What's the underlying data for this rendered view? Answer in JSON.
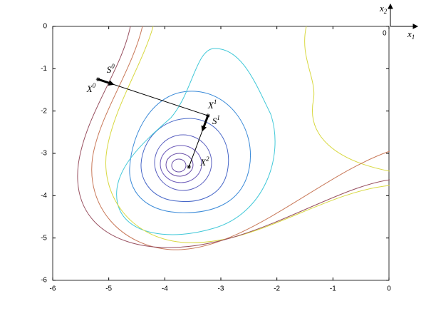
{
  "chart_data": {
    "type": "contour",
    "xlim": [
      -6,
      0
    ],
    "ylim": [
      -6,
      0
    ],
    "xticks": [
      -6,
      -5,
      -4,
      -3,
      -2,
      -1,
      0
    ],
    "yticks": [
      -6,
      -5,
      -4,
      -3,
      -2,
      -1,
      0
    ],
    "path": {
      "x": [
        -5.19,
        -3.23,
        -3.57
      ],
      "y": [
        -1.25,
        -2.11,
        -3.32
      ],
      "color": "#000000"
    },
    "point_labels": [
      {
        "base": "X",
        "sup": "0"
      },
      {
        "base": "X",
        "sup": "1"
      },
      {
        "base": "X",
        "sup": "2"
      }
    ],
    "direction_labels": [
      {
        "base": "S",
        "sup": "0"
      },
      {
        "base": "S",
        "sup": "1"
      }
    ],
    "corner_axes": {
      "x_label": {
        "base": "x",
        "sub": "1"
      },
      "y_label": {
        "base": "x",
        "sub": "2"
      },
      "origin": "0"
    }
  }
}
